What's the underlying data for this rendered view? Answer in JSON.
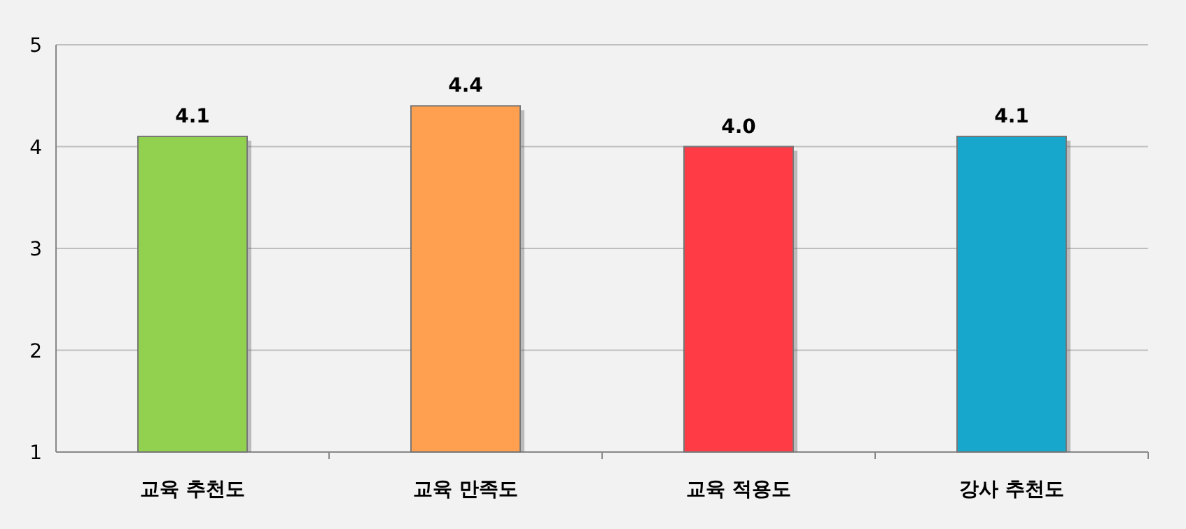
{
  "chart_data": {
    "type": "bar",
    "categories": [
      "교육 추천도",
      "교육 만족도",
      "교육 적용도",
      "강사 추천도"
    ],
    "values": [
      4.1,
      4.4,
      4.0,
      4.1
    ],
    "colors": [
      "#92d050",
      "#ffa050",
      "#ff3b45",
      "#17a6cc"
    ],
    "ylim": [
      1,
      5
    ],
    "yticks": [
      1,
      2,
      3,
      4,
      5
    ],
    "value_labels": [
      "4.1",
      "4.4",
      "4.0",
      "4.1"
    ],
    "grid": "y"
  }
}
